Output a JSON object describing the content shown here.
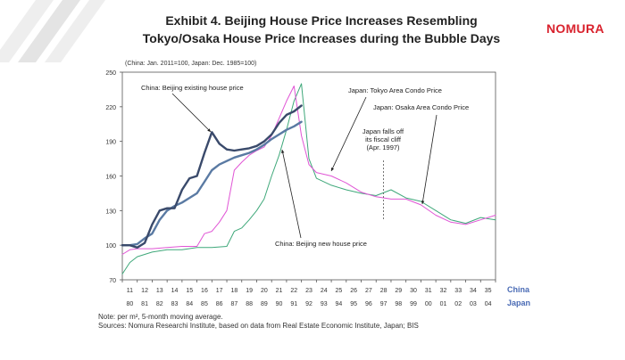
{
  "brand": {
    "name": "NOMURA",
    "color": "#d9232e"
  },
  "title": {
    "line1": "Exhibit 4. Beijing House Price Increases Resembling",
    "line2": "Tokyo/Osaka House Price Increases during the Bubble Days"
  },
  "chart_data": {
    "type": "line",
    "subtitle": "(China: Jan. 2011=100, Japan: Dec. 1985=100)",
    "ylim": [
      70,
      250
    ],
    "yticks": [
      70,
      100,
      130,
      160,
      190,
      220,
      250
    ],
    "x_china_ticks": [
      "11",
      "12",
      "13",
      "14",
      "15",
      "16",
      "17",
      "18",
      "19",
      "20",
      "21",
      "22",
      "23",
      "24",
      "25",
      "26",
      "27",
      "28",
      "29",
      "30",
      "31",
      "32",
      "33",
      "34",
      "35"
    ],
    "x_japan_ticks": [
      "80",
      "81",
      "82",
      "83",
      "84",
      "85",
      "86",
      "87",
      "88",
      "89",
      "90",
      "91",
      "92",
      "93",
      "94",
      "95",
      "96",
      "97",
      "98",
      "99",
      "00",
      "01",
      "02",
      "03",
      "04"
    ],
    "x_china_label": "China",
    "x_japan_label": "Japan",
    "series": [
      {
        "name": "China: Beijing existing house price",
        "color": "#3a4a6b",
        "x": [
          11,
          11.5,
          12,
          12.5,
          13,
          13.5,
          14,
          14.5,
          15,
          15.5,
          16,
          16.5,
          17,
          17.5,
          18,
          18.5,
          19,
          19.5,
          20,
          20.5,
          21,
          21.5,
          22,
          22.5,
          23
        ],
        "y": [
          100,
          100,
          98,
          102,
          118,
          130,
          132,
          132,
          148,
          158,
          160,
          180,
          198,
          188,
          183,
          182,
          183,
          184,
          186,
          190,
          196,
          206,
          213,
          216,
          221
        ]
      },
      {
        "name": "China: Beijing new house price",
        "color": "#5a7aa3",
        "x": [
          11,
          11.5,
          12,
          12.5,
          13,
          13.5,
          14,
          14.5,
          15,
          15.5,
          16,
          16.5,
          17,
          17.5,
          18,
          18.5,
          19,
          19.5,
          20,
          20.5,
          21,
          21.5,
          22,
          22.5,
          23
        ],
        "y": [
          100,
          100,
          101,
          106,
          110,
          122,
          130,
          134,
          137,
          141,
          145,
          155,
          165,
          170,
          173,
          176,
          178,
          180,
          183,
          187,
          192,
          196,
          200,
          203,
          207
        ]
      },
      {
        "name": "Japan: Tokyo Area Condo Price",
        "color": "#e055d5",
        "x": [
          11,
          11.5,
          12,
          13,
          14,
          15,
          16,
          16.5,
          17,
          17.5,
          18,
          18.5,
          19,
          19.5,
          20,
          20.5,
          21,
          21.5,
          22,
          22.5,
          23,
          23.5,
          24,
          25,
          26,
          27,
          28,
          29,
          30,
          31,
          32,
          33,
          34,
          35,
          36
        ],
        "y": [
          92,
          96,
          97,
          97,
          98,
          99,
          99,
          110,
          112,
          120,
          130,
          165,
          172,
          178,
          182,
          185,
          195,
          210,
          225,
          238,
          195,
          170,
          163,
          160,
          154,
          146,
          142,
          140,
          140,
          135,
          126,
          120,
          118,
          122,
          126
        ]
      },
      {
        "name": "Japan: Osaka Area Condo Price",
        "color": "#3fa87a",
        "x": [
          11,
          11.5,
          12,
          13,
          14,
          15,
          16,
          17,
          18,
          18.5,
          19,
          19.5,
          20,
          20.5,
          21,
          21.5,
          22,
          22.5,
          23,
          23.5,
          24,
          25,
          26,
          27,
          28,
          29,
          30,
          31,
          32,
          33,
          34,
          35,
          36
        ],
        "y": [
          75,
          85,
          90,
          94,
          96,
          96,
          98,
          98,
          99,
          112,
          115,
          122,
          130,
          140,
          160,
          178,
          200,
          225,
          240,
          175,
          158,
          152,
          148,
          145,
          143,
          148,
          141,
          138,
          130,
          122,
          119,
          124,
          122
        ]
      }
    ],
    "annotations": [
      {
        "id": "beijing_existing",
        "text": "China: Beijing existing house price"
      },
      {
        "id": "beijing_new",
        "text": "China: Beijing new house price"
      },
      {
        "id": "tokyo",
        "text": "Japan: Tokyo Area Condo Price"
      },
      {
        "id": "osaka",
        "text": "Japan: Osaka Area Condo Price"
      },
      {
        "id": "cliff",
        "lines": [
          "Japan falls off",
          "its fiscal cliff",
          "(Apr. 1997)"
        ]
      }
    ],
    "event_x": 28
  },
  "note": {
    "line1": "Note: per m², 5-month moving average.",
    "line2": "Sources: Nomura Researchi Institute, based on data from Real Estate Economic Institute, Japan; BIS"
  }
}
